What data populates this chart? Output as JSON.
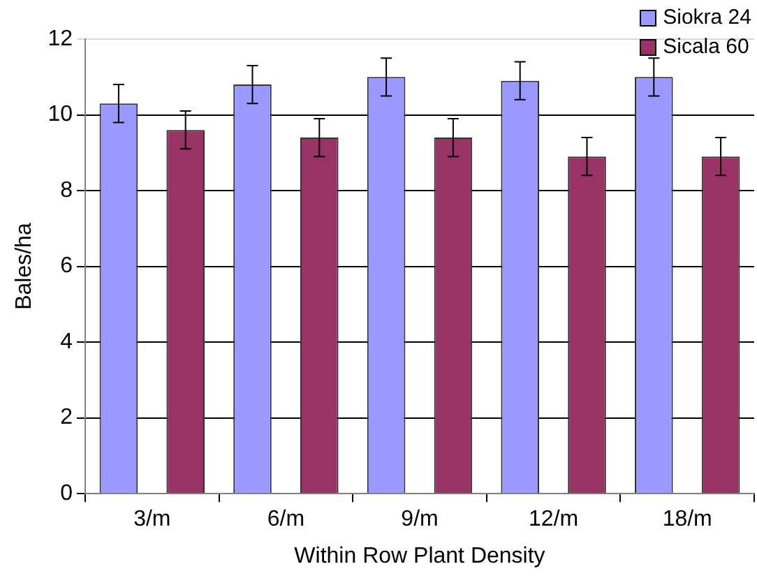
{
  "chart_data": {
    "type": "bar",
    "xlabel": "Within Row Plant Density",
    "ylabel": "Bales/ha",
    "categories": [
      "3/m",
      "6/m",
      "9/m",
      "12/m",
      "18/m"
    ],
    "series": [
      {
        "name": "Siokra 24",
        "color": "#9999ff",
        "values": [
          10.3,
          10.8,
          11.0,
          10.9,
          11.0
        ],
        "errors": [
          0.5,
          0.5,
          0.5,
          0.5,
          0.5
        ]
      },
      {
        "name": "Sicala 60",
        "color": "#993366",
        "values": [
          9.6,
          9.4,
          9.4,
          8.9,
          8.9
        ],
        "errors": [
          0.5,
          0.5,
          0.5,
          0.5,
          0.5
        ]
      }
    ],
    "ylim": [
      0,
      12
    ],
    "yticks": [
      0,
      2,
      4,
      6,
      8,
      10,
      12
    ],
    "grid": "y",
    "legend": "top right"
  }
}
